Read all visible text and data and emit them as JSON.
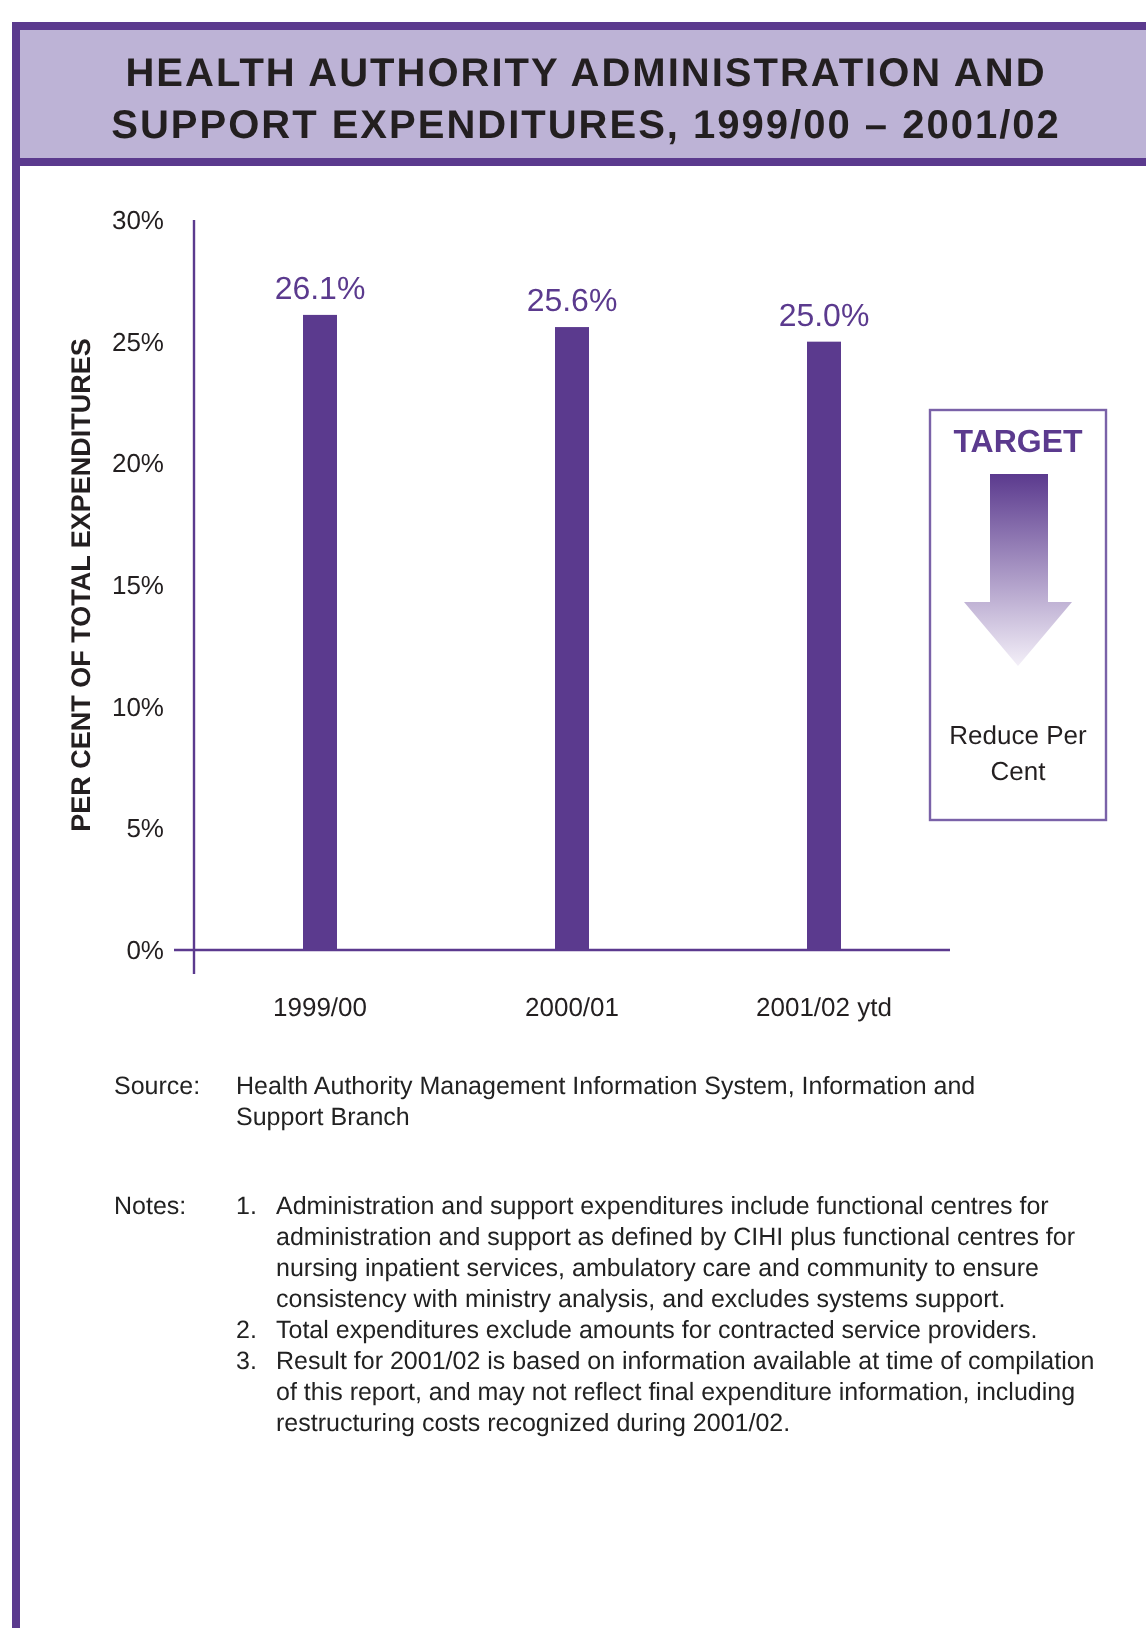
{
  "chart_data": {
    "type": "bar",
    "title": "HEALTH AUTHORITY ADMINISTRATION AND SUPPORT EXPENDITURES, 1999/00 – 2001/02",
    "ylabel": "PER CENT OF TOTAL EXPENDITURES",
    "categories": [
      "1999/00",
      "2000/01",
      "2001/02 ytd"
    ],
    "values": [
      26.1,
      25.6,
      25.0
    ],
    "value_labels": [
      "26.1%",
      "25.6%",
      "25.0%"
    ],
    "color": "#5b3a8e",
    "ylim": [
      0,
      30
    ],
    "yticks": [
      {
        "value": 0,
        "label": "0%"
      },
      {
        "value": 5,
        "label": "5%"
      },
      {
        "value": 10,
        "label": "10%"
      },
      {
        "value": 15,
        "label": "15%"
      },
      {
        "value": 20,
        "label": "20%"
      },
      {
        "value": 25,
        "label": "25%"
      },
      {
        "value": 30,
        "label": "30%"
      }
    ],
    "grid": false,
    "annotations": [
      "TARGET",
      "Reduce Per Cent",
      "Source:",
      "Health Authority Management Information System, Information and Support Branch",
      "Notes:",
      "1. Administration and support expenditures include functional centres for administration and support as defined by CIHI plus functional centres for nursing inpatient services, ambulatory care and community to ensure consistency with ministry analysis, and excludes systems support.",
      "2. Total expenditures exclude amounts for contracted service providers.",
      "3. Result for 2001/02 is based on information available at time of compilation of this report, and may not reflect final expenditure information, including restructuring costs recognized during 2001/02."
    ]
  }
}
